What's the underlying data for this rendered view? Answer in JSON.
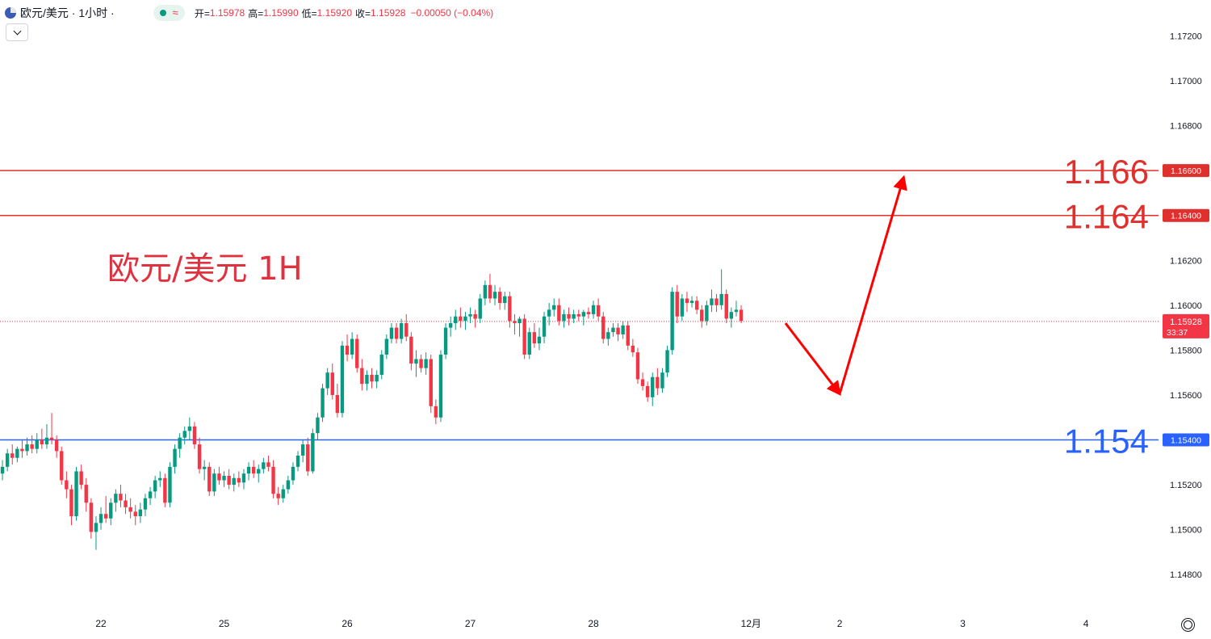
{
  "header": {
    "symbol": "欧元/美元 · 1小时 ·",
    "open_label": "开=",
    "open": "1.15978",
    "high_label": "高=",
    "high": "1.15990",
    "low_label": "低=",
    "low": "1.15920",
    "close_label": "收=",
    "close": "1.15928",
    "change": "−0.00050 (−0.04%)"
  },
  "chart_data": {
    "type": "candlestick",
    "title": "欧元/美元 1H",
    "ylim": [
      1.147,
      1.1727
    ],
    "y_ticks": [
      "1.17200",
      "1.17000",
      "1.16800",
      "1.16600",
      "1.16400",
      "1.16200",
      "1.16000",
      "1.15800",
      "1.15600",
      "1.15400",
      "1.15200",
      "1.15000",
      "1.14800"
    ],
    "x_ticks": [
      {
        "label": "22",
        "bar": 20
      },
      {
        "label": "25",
        "bar": 45
      },
      {
        "label": "26",
        "bar": 70
      },
      {
        "label": "27",
        "bar": 95
      },
      {
        "label": "28",
        "bar": 120
      },
      {
        "label": "12月",
        "bar": 152
      },
      {
        "label": "2",
        "bar": 170
      },
      {
        "label": "3",
        "bar": 195
      },
      {
        "label": "4",
        "bar": 220
      }
    ],
    "candles": [
      [
        1.1525,
        1.1531,
        1.1522,
        1.1528
      ],
      [
        1.1528,
        1.1536,
        1.1526,
        1.1534
      ],
      [
        1.1534,
        1.1538,
        1.1529,
        1.1532
      ],
      [
        1.1532,
        1.1537,
        1.153,
        1.1536
      ],
      [
        1.1536,
        1.154,
        1.1532,
        1.1535
      ],
      [
        1.1535,
        1.1541,
        1.1533,
        1.1538
      ],
      [
        1.1538,
        1.1542,
        1.1534,
        1.1536
      ],
      [
        1.1536,
        1.1543,
        1.1534,
        1.154
      ],
      [
        1.154,
        1.1545,
        1.1536,
        1.1538
      ],
      [
        1.1538,
        1.1547,
        1.1536,
        1.1541
      ],
      [
        1.1541,
        1.1552,
        1.1538,
        1.154
      ],
      [
        1.154,
        1.1542,
        1.1532,
        1.1535
      ],
      [
        1.1535,
        1.1537,
        1.152,
        1.1522
      ],
      [
        1.1522,
        1.1526,
        1.1514,
        1.1518
      ],
      [
        1.1518,
        1.152,
        1.1502,
        1.1506
      ],
      [
        1.1506,
        1.1528,
        1.1504,
        1.1526
      ],
      [
        1.1526,
        1.1529,
        1.1518,
        1.152
      ],
      [
        1.152,
        1.1523,
        1.1508,
        1.1512
      ],
      [
        1.1512,
        1.1514,
        1.1496,
        1.1499
      ],
      [
        1.1499,
        1.1506,
        1.1491,
        1.1503
      ],
      [
        1.1503,
        1.151,
        1.15,
        1.1507
      ],
      [
        1.1507,
        1.1515,
        1.1503,
        1.1505
      ],
      [
        1.1505,
        1.1514,
        1.1502,
        1.1512
      ],
      [
        1.1512,
        1.1518,
        1.1508,
        1.1516
      ],
      [
        1.1516,
        1.152,
        1.151,
        1.1513
      ],
      [
        1.1513,
        1.1516,
        1.1507,
        1.151
      ],
      [
        1.151,
        1.1514,
        1.1505,
        1.1508
      ],
      [
        1.1508,
        1.1511,
        1.1502,
        1.1506
      ],
      [
        1.1506,
        1.1512,
        1.1503,
        1.1509
      ],
      [
        1.1509,
        1.1516,
        1.1506,
        1.1514
      ],
      [
        1.1514,
        1.1519,
        1.1511,
        1.1517
      ],
      [
        1.1517,
        1.1524,
        1.1514,
        1.1522
      ],
      [
        1.1522,
        1.1526,
        1.1519,
        1.1523
      ],
      [
        1.1523,
        1.1525,
        1.151,
        1.1512
      ],
      [
        1.1512,
        1.153,
        1.151,
        1.1528
      ],
      [
        1.1528,
        1.1538,
        1.1525,
        1.1536
      ],
      [
        1.1536,
        1.1543,
        1.1532,
        1.1541
      ],
      [
        1.1541,
        1.1546,
        1.1538,
        1.1544
      ],
      [
        1.1544,
        1.155,
        1.154,
        1.1546
      ],
      [
        1.1546,
        1.1548,
        1.1536,
        1.1538
      ],
      [
        1.1538,
        1.1541,
        1.1525,
        1.1527
      ],
      [
        1.1527,
        1.1531,
        1.1522,
        1.1528
      ],
      [
        1.1528,
        1.153,
        1.1515,
        1.1517
      ],
      [
        1.1517,
        1.1527,
        1.1515,
        1.1525
      ],
      [
        1.1525,
        1.1528,
        1.152,
        1.1522
      ],
      [
        1.1522,
        1.1526,
        1.1519,
        1.1524
      ],
      [
        1.1524,
        1.1527,
        1.1518,
        1.152
      ],
      [
        1.152,
        1.1525,
        1.1517,
        1.1523
      ],
      [
        1.1523,
        1.1526,
        1.1519,
        1.1521
      ],
      [
        1.1521,
        1.1527,
        1.1518,
        1.1525
      ],
      [
        1.1525,
        1.153,
        1.1522,
        1.1528
      ],
      [
        1.1528,
        1.1531,
        1.1523,
        1.1525
      ],
      [
        1.1525,
        1.1529,
        1.1521,
        1.1527
      ],
      [
        1.1527,
        1.1532,
        1.1525,
        1.153
      ],
      [
        1.153,
        1.1533,
        1.1526,
        1.1528
      ],
      [
        1.1528,
        1.1531,
        1.1514,
        1.1516
      ],
      [
        1.1516,
        1.1519,
        1.1511,
        1.1514
      ],
      [
        1.1514,
        1.152,
        1.1512,
        1.1518
      ],
      [
        1.1518,
        1.1524,
        1.1516,
        1.1522
      ],
      [
        1.1522,
        1.153,
        1.152,
        1.1528
      ],
      [
        1.1528,
        1.1535,
        1.1526,
        1.1533
      ],
      [
        1.1533,
        1.154,
        1.153,
        1.1538
      ],
      [
        1.1538,
        1.1541,
        1.1524,
        1.1526
      ],
      [
        1.1526,
        1.1545,
        1.1525,
        1.1543
      ],
      [
        1.1543,
        1.1552,
        1.154,
        1.155
      ],
      [
        1.155,
        1.1565,
        1.1548,
        1.1563
      ],
      [
        1.1563,
        1.1572,
        1.156,
        1.157
      ],
      [
        1.157,
        1.1574,
        1.1558,
        1.156
      ],
      [
        1.156,
        1.1565,
        1.155,
        1.1552
      ],
      [
        1.1552,
        1.1584,
        1.155,
        1.1582
      ],
      [
        1.1582,
        1.1587,
        1.1575,
        1.1578
      ],
      [
        1.1578,
        1.1588,
        1.1576,
        1.1585
      ],
      [
        1.1585,
        1.1587,
        1.157,
        1.1572
      ],
      [
        1.1572,
        1.1576,
        1.1562,
        1.1565
      ],
      [
        1.1565,
        1.1571,
        1.1562,
        1.1569
      ],
      [
        1.1569,
        1.1572,
        1.1563,
        1.1566
      ],
      [
        1.1566,
        1.1571,
        1.1563,
        1.1569
      ],
      [
        1.1569,
        1.158,
        1.1567,
        1.1578
      ],
      [
        1.1578,
        1.1587,
        1.1576,
        1.1585
      ],
      [
        1.1585,
        1.1592,
        1.1583,
        1.159
      ],
      [
        1.159,
        1.1592,
        1.1583,
        1.1585
      ],
      [
        1.1585,
        1.1594,
        1.1583,
        1.1592
      ],
      [
        1.1592,
        1.1596,
        1.1584,
        1.1586
      ],
      [
        1.1586,
        1.1588,
        1.1571,
        1.1574
      ],
      [
        1.1574,
        1.158,
        1.1568,
        1.1576
      ],
      [
        1.1576,
        1.1578,
        1.157,
        1.1572
      ],
      [
        1.1572,
        1.1579,
        1.1569,
        1.1576
      ],
      [
        1.1576,
        1.1578,
        1.1552,
        1.1555
      ],
      [
        1.1555,
        1.1558,
        1.1547,
        1.155
      ],
      [
        1.155,
        1.158,
        1.1548,
        1.1578
      ],
      [
        1.1578,
        1.1592,
        1.1576,
        1.159
      ],
      [
        1.159,
        1.1595,
        1.1586,
        1.1592
      ],
      [
        1.1592,
        1.1598,
        1.1589,
        1.1595
      ],
      [
        1.1595,
        1.1599,
        1.159,
        1.1593
      ],
      [
        1.1593,
        1.1597,
        1.1589,
        1.1595
      ],
      [
        1.1595,
        1.1599,
        1.1592,
        1.1596
      ],
      [
        1.1596,
        1.1598,
        1.159,
        1.1594
      ],
      [
        1.1594,
        1.1605,
        1.1592,
        1.1603
      ],
      [
        1.1603,
        1.1611,
        1.16,
        1.1609
      ],
      [
        1.1609,
        1.1614,
        1.1601,
        1.1603
      ],
      [
        1.1603,
        1.1609,
        1.16,
        1.1606
      ],
      [
        1.1606,
        1.1608,
        1.1598,
        1.1601
      ],
      [
        1.1601,
        1.1606,
        1.1598,
        1.1604
      ],
      [
        1.1604,
        1.1606,
        1.159,
        1.1593
      ],
      [
        1.1593,
        1.1596,
        1.1587,
        1.1592
      ],
      [
        1.1592,
        1.1595,
        1.1586,
        1.1594
      ],
      [
        1.1594,
        1.1596,
        1.1576,
        1.1578
      ],
      [
        1.1578,
        1.159,
        1.1576,
        1.1588
      ],
      [
        1.1588,
        1.1592,
        1.1581,
        1.1583
      ],
      [
        1.1583,
        1.159,
        1.158,
        1.1586
      ],
      [
        1.1586,
        1.1597,
        1.1583,
        1.1595
      ],
      [
        1.1595,
        1.1601,
        1.1591,
        1.1598
      ],
      [
        1.1598,
        1.1603,
        1.1595,
        1.16
      ],
      [
        1.16,
        1.1603,
        1.1591,
        1.1593
      ],
      [
        1.1593,
        1.1598,
        1.159,
        1.1596
      ],
      [
        1.1596,
        1.1599,
        1.1591,
        1.1594
      ],
      [
        1.1594,
        1.1598,
        1.1592,
        1.1596
      ],
      [
        1.1596,
        1.1598,
        1.1593,
        1.1595
      ],
      [
        1.1595,
        1.1598,
        1.1591,
        1.1597
      ],
      [
        1.1597,
        1.1599,
        1.1594,
        1.1596
      ],
      [
        1.1596,
        1.1602,
        1.1594,
        1.16
      ],
      [
        1.16,
        1.1603,
        1.1593,
        1.1595
      ],
      [
        1.1595,
        1.1597,
        1.1583,
        1.1585
      ],
      [
        1.1585,
        1.159,
        1.1582,
        1.1588
      ],
      [
        1.1588,
        1.1592,
        1.1586,
        1.159
      ],
      [
        1.159,
        1.1592,
        1.1584,
        1.1587
      ],
      [
        1.1587,
        1.1593,
        1.1585,
        1.1591
      ],
      [
        1.1591,
        1.1593,
        1.158,
        1.1582
      ],
      [
        1.1582,
        1.1585,
        1.1577,
        1.1579
      ],
      [
        1.1579,
        1.1581,
        1.1565,
        1.1567
      ],
      [
        1.1567,
        1.157,
        1.1562,
        1.1564
      ],
      [
        1.1564,
        1.1566,
        1.1557,
        1.1559
      ],
      [
        1.1559,
        1.157,
        1.1555,
        1.1568
      ],
      [
        1.1568,
        1.1572,
        1.156,
        1.1563
      ],
      [
        1.1563,
        1.1572,
        1.1561,
        1.157
      ],
      [
        1.157,
        1.1582,
        1.1568,
        1.158
      ],
      [
        1.158,
        1.1608,
        1.1578,
        1.1606
      ],
      [
        1.1606,
        1.1609,
        1.1592,
        1.1595
      ],
      [
        1.1595,
        1.1605,
        1.1593,
        1.1603
      ],
      [
        1.1603,
        1.1606,
        1.1597,
        1.1601
      ],
      [
        1.1601,
        1.1604,
        1.1599,
        1.1602
      ],
      [
        1.1602,
        1.1604,
        1.1596,
        1.1598
      ],
      [
        1.1598,
        1.16,
        1.159,
        1.1593
      ],
      [
        1.1593,
        1.1602,
        1.1591,
        1.16
      ],
      [
        1.16,
        1.1607,
        1.1597,
        1.1603
      ],
      [
        1.1603,
        1.1605,
        1.1597,
        1.16
      ],
      [
        1.16,
        1.1616,
        1.1598,
        1.1605
      ],
      [
        1.1605,
        1.1607,
        1.1592,
        1.1594
      ],
      [
        1.1594,
        1.1599,
        1.159,
        1.1597
      ],
      [
        1.1597,
        1.1602,
        1.1595,
        1.1598
      ],
      [
        1.1598,
        1.16,
        1.1592,
        1.1593
      ]
    ],
    "horizontal_levels": [
      {
        "value": 1.166,
        "label": "1.166",
        "axis_label": "1.16600",
        "color": "#e0302e"
      },
      {
        "value": 1.164,
        "label": "1.164",
        "axis_label": "1.16400",
        "color": "#e0302e"
      },
      {
        "value": 1.154,
        "label": "1.154",
        "axis_label": "1.15400",
        "color": "#2962ff"
      }
    ],
    "current_price": {
      "value": 1.15928,
      "label": "1.15928",
      "countdown": "33:37"
    },
    "projection_arrows": [
      {
        "from": {
          "bar": 159,
          "price": 1.1592
        },
        "to": {
          "bar": 170,
          "price": 1.15605
        }
      },
      {
        "from": {
          "bar": 170,
          "price": 1.15605
        },
        "to": {
          "bar": 183,
          "price": 1.1657
        }
      }
    ],
    "colors": {
      "up": "#089981",
      "down": "#f23645",
      "arrow": "#ff0000"
    }
  }
}
